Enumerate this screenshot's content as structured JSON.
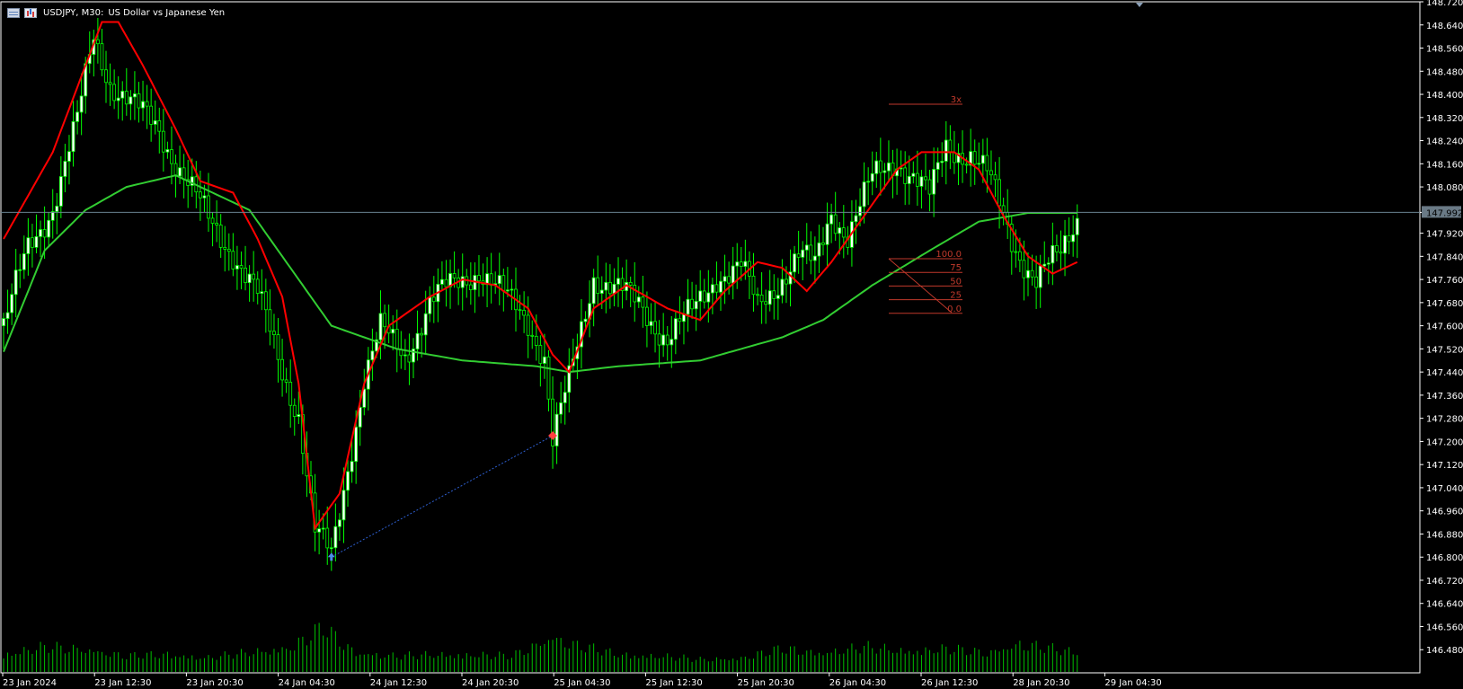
{
  "header": {
    "symbol": "USDJPY, M30:",
    "description": "US Dollar vs Japanese Yen"
  },
  "colors": {
    "background": "#000000",
    "axis": "#ffffff",
    "bull_candle": "#ffffff",
    "bear_candle": "#000000",
    "wick": "#00ff00",
    "ma_fast": "#ff0000",
    "ma_slow": "#32cd32",
    "volume": "#00c000",
    "current_price_line": "#6a8290",
    "current_price_label_bg": "#6a7a86",
    "fib": "#c0392b"
  },
  "chart_data": {
    "type": "candlestick",
    "timeframe": "M30",
    "ylim": [
      146.4,
      148.72
    ],
    "y_ticks": [
      "148.720",
      "148.640",
      "148.560",
      "148.480",
      "148.400",
      "148.320",
      "148.240",
      "148.160",
      "148.080",
      "147.992",
      "147.920",
      "147.840",
      "147.760",
      "147.680",
      "147.600",
      "147.520",
      "147.440",
      "147.360",
      "147.280",
      "147.200",
      "147.120",
      "147.040",
      "146.960",
      "146.880",
      "146.800",
      "146.720",
      "146.640",
      "146.560",
      "146.480"
    ],
    "x_ticks": [
      "23 Jan 2024",
      "23 Jan 12:30",
      "23 Jan 20:30",
      "24 Jan 04:30",
      "24 Jan 12:30",
      "24 Jan 20:30",
      "25 Jan 04:30",
      "25 Jan 12:30",
      "25 Jan 20:30",
      "26 Jan 04:30",
      "26 Jan 12:30",
      "28 Jan 20:30",
      "29 Jan 04:30"
    ],
    "current_price": 147.992,
    "close_path": [
      [
        0,
        147.6
      ],
      [
        6,
        147.86
      ],
      [
        12,
        148.02
      ],
      [
        18,
        148.3
      ],
      [
        22,
        148.6
      ],
      [
        26,
        148.45
      ],
      [
        32,
        148.35
      ],
      [
        38,
        148.28
      ],
      [
        44,
        148.12
      ],
      [
        50,
        147.96
      ],
      [
        56,
        147.86
      ],
      [
        62,
        147.7
      ],
      [
        68,
        147.45
      ],
      [
        72,
        147.3
      ],
      [
        76,
        146.88
      ],
      [
        80,
        146.8
      ],
      [
        84,
        147.12
      ],
      [
        88,
        147.42
      ],
      [
        92,
        147.58
      ],
      [
        98,
        147.5
      ],
      [
        104,
        147.68
      ],
      [
        110,
        147.74
      ],
      [
        116,
        147.8
      ],
      [
        122,
        147.7
      ],
      [
        128,
        147.62
      ],
      [
        132,
        147.5
      ],
      [
        134,
        147.2
      ],
      [
        138,
        147.4
      ],
      [
        144,
        147.78
      ],
      [
        150,
        147.72
      ],
      [
        156,
        147.66
      ],
      [
        162,
        147.56
      ],
      [
        168,
        147.64
      ],
      [
        174,
        147.78
      ],
      [
        180,
        147.8
      ],
      [
        184,
        147.66
      ],
      [
        188,
        147.74
      ],
      [
        194,
        147.84
      ],
      [
        198,
        147.8
      ],
      [
        202,
        148.0
      ],
      [
        206,
        147.92
      ],
      [
        212,
        148.1
      ],
      [
        218,
        148.18
      ],
      [
        222,
        148.12
      ],
      [
        226,
        148.04
      ],
      [
        230,
        148.22
      ],
      [
        236,
        148.2
      ],
      [
        240,
        148.12
      ],
      [
        246,
        147.9
      ],
      [
        252,
        147.76
      ],
      [
        258,
        147.84
      ],
      [
        262,
        147.98
      ]
    ],
    "ma_fast_path": [
      [
        0,
        147.9
      ],
      [
        12,
        148.2
      ],
      [
        24,
        148.65
      ],
      [
        28,
        148.65
      ],
      [
        34,
        148.5
      ],
      [
        42,
        148.28
      ],
      [
        48,
        148.1
      ],
      [
        56,
        148.06
      ],
      [
        62,
        147.9
      ],
      [
        68,
        147.7
      ],
      [
        72,
        147.4
      ],
      [
        76,
        146.9
      ],
      [
        82,
        147.02
      ],
      [
        88,
        147.4
      ],
      [
        94,
        147.6
      ],
      [
        104,
        147.7
      ],
      [
        112,
        147.76
      ],
      [
        120,
        147.74
      ],
      [
        128,
        147.66
      ],
      [
        134,
        147.5
      ],
      [
        138,
        147.44
      ],
      [
        144,
        147.66
      ],
      [
        152,
        147.74
      ],
      [
        162,
        147.66
      ],
      [
        170,
        147.62
      ],
      [
        176,
        147.72
      ],
      [
        184,
        147.82
      ],
      [
        190,
        147.8
      ],
      [
        196,
        147.72
      ],
      [
        202,
        147.82
      ],
      [
        210,
        147.98
      ],
      [
        218,
        148.14
      ],
      [
        224,
        148.2
      ],
      [
        232,
        148.2
      ],
      [
        238,
        148.14
      ],
      [
        244,
        147.98
      ],
      [
        250,
        147.84
      ],
      [
        256,
        147.78
      ],
      [
        262,
        147.82
      ]
    ],
    "ma_slow_path": [
      [
        0,
        147.51
      ],
      [
        10,
        147.86
      ],
      [
        20,
        148.0
      ],
      [
        30,
        148.08
      ],
      [
        42,
        148.12
      ],
      [
        60,
        148.0
      ],
      [
        80,
        147.6
      ],
      [
        96,
        147.52
      ],
      [
        112,
        147.48
      ],
      [
        130,
        147.46
      ],
      [
        138,
        147.44
      ],
      [
        150,
        147.46
      ],
      [
        170,
        147.48
      ],
      [
        190,
        147.56
      ],
      [
        200,
        147.62
      ],
      [
        212,
        147.74
      ],
      [
        226,
        147.86
      ],
      [
        238,
        147.96
      ],
      [
        250,
        147.99
      ],
      [
        262,
        147.99
      ]
    ],
    "volume_path": [
      [
        0,
        20
      ],
      [
        10,
        28
      ],
      [
        20,
        26
      ],
      [
        30,
        18
      ],
      [
        40,
        20
      ],
      [
        50,
        16
      ],
      [
        60,
        22
      ],
      [
        70,
        28
      ],
      [
        78,
        50
      ],
      [
        86,
        22
      ],
      [
        96,
        18
      ],
      [
        110,
        20
      ],
      [
        124,
        18
      ],
      [
        134,
        40
      ],
      [
        140,
        30
      ],
      [
        150,
        20
      ],
      [
        160,
        18
      ],
      [
        170,
        14
      ],
      [
        180,
        16
      ],
      [
        190,
        26
      ],
      [
        200,
        22
      ],
      [
        210,
        28
      ],
      [
        220,
        24
      ],
      [
        230,
        26
      ],
      [
        240,
        22
      ],
      [
        248,
        32
      ],
      [
        256,
        26
      ],
      [
        262,
        22
      ]
    ],
    "markers": [
      {
        "type": "buy-arrow",
        "bar": 80,
        "price": 146.8
      },
      {
        "type": "sell-diamond",
        "bar": 134,
        "price": 147.22
      }
    ],
    "fib_levels": [
      "100.0",
      "75",
      "50",
      "25",
      "0.0"
    ],
    "fib_extension_label": "3x"
  }
}
